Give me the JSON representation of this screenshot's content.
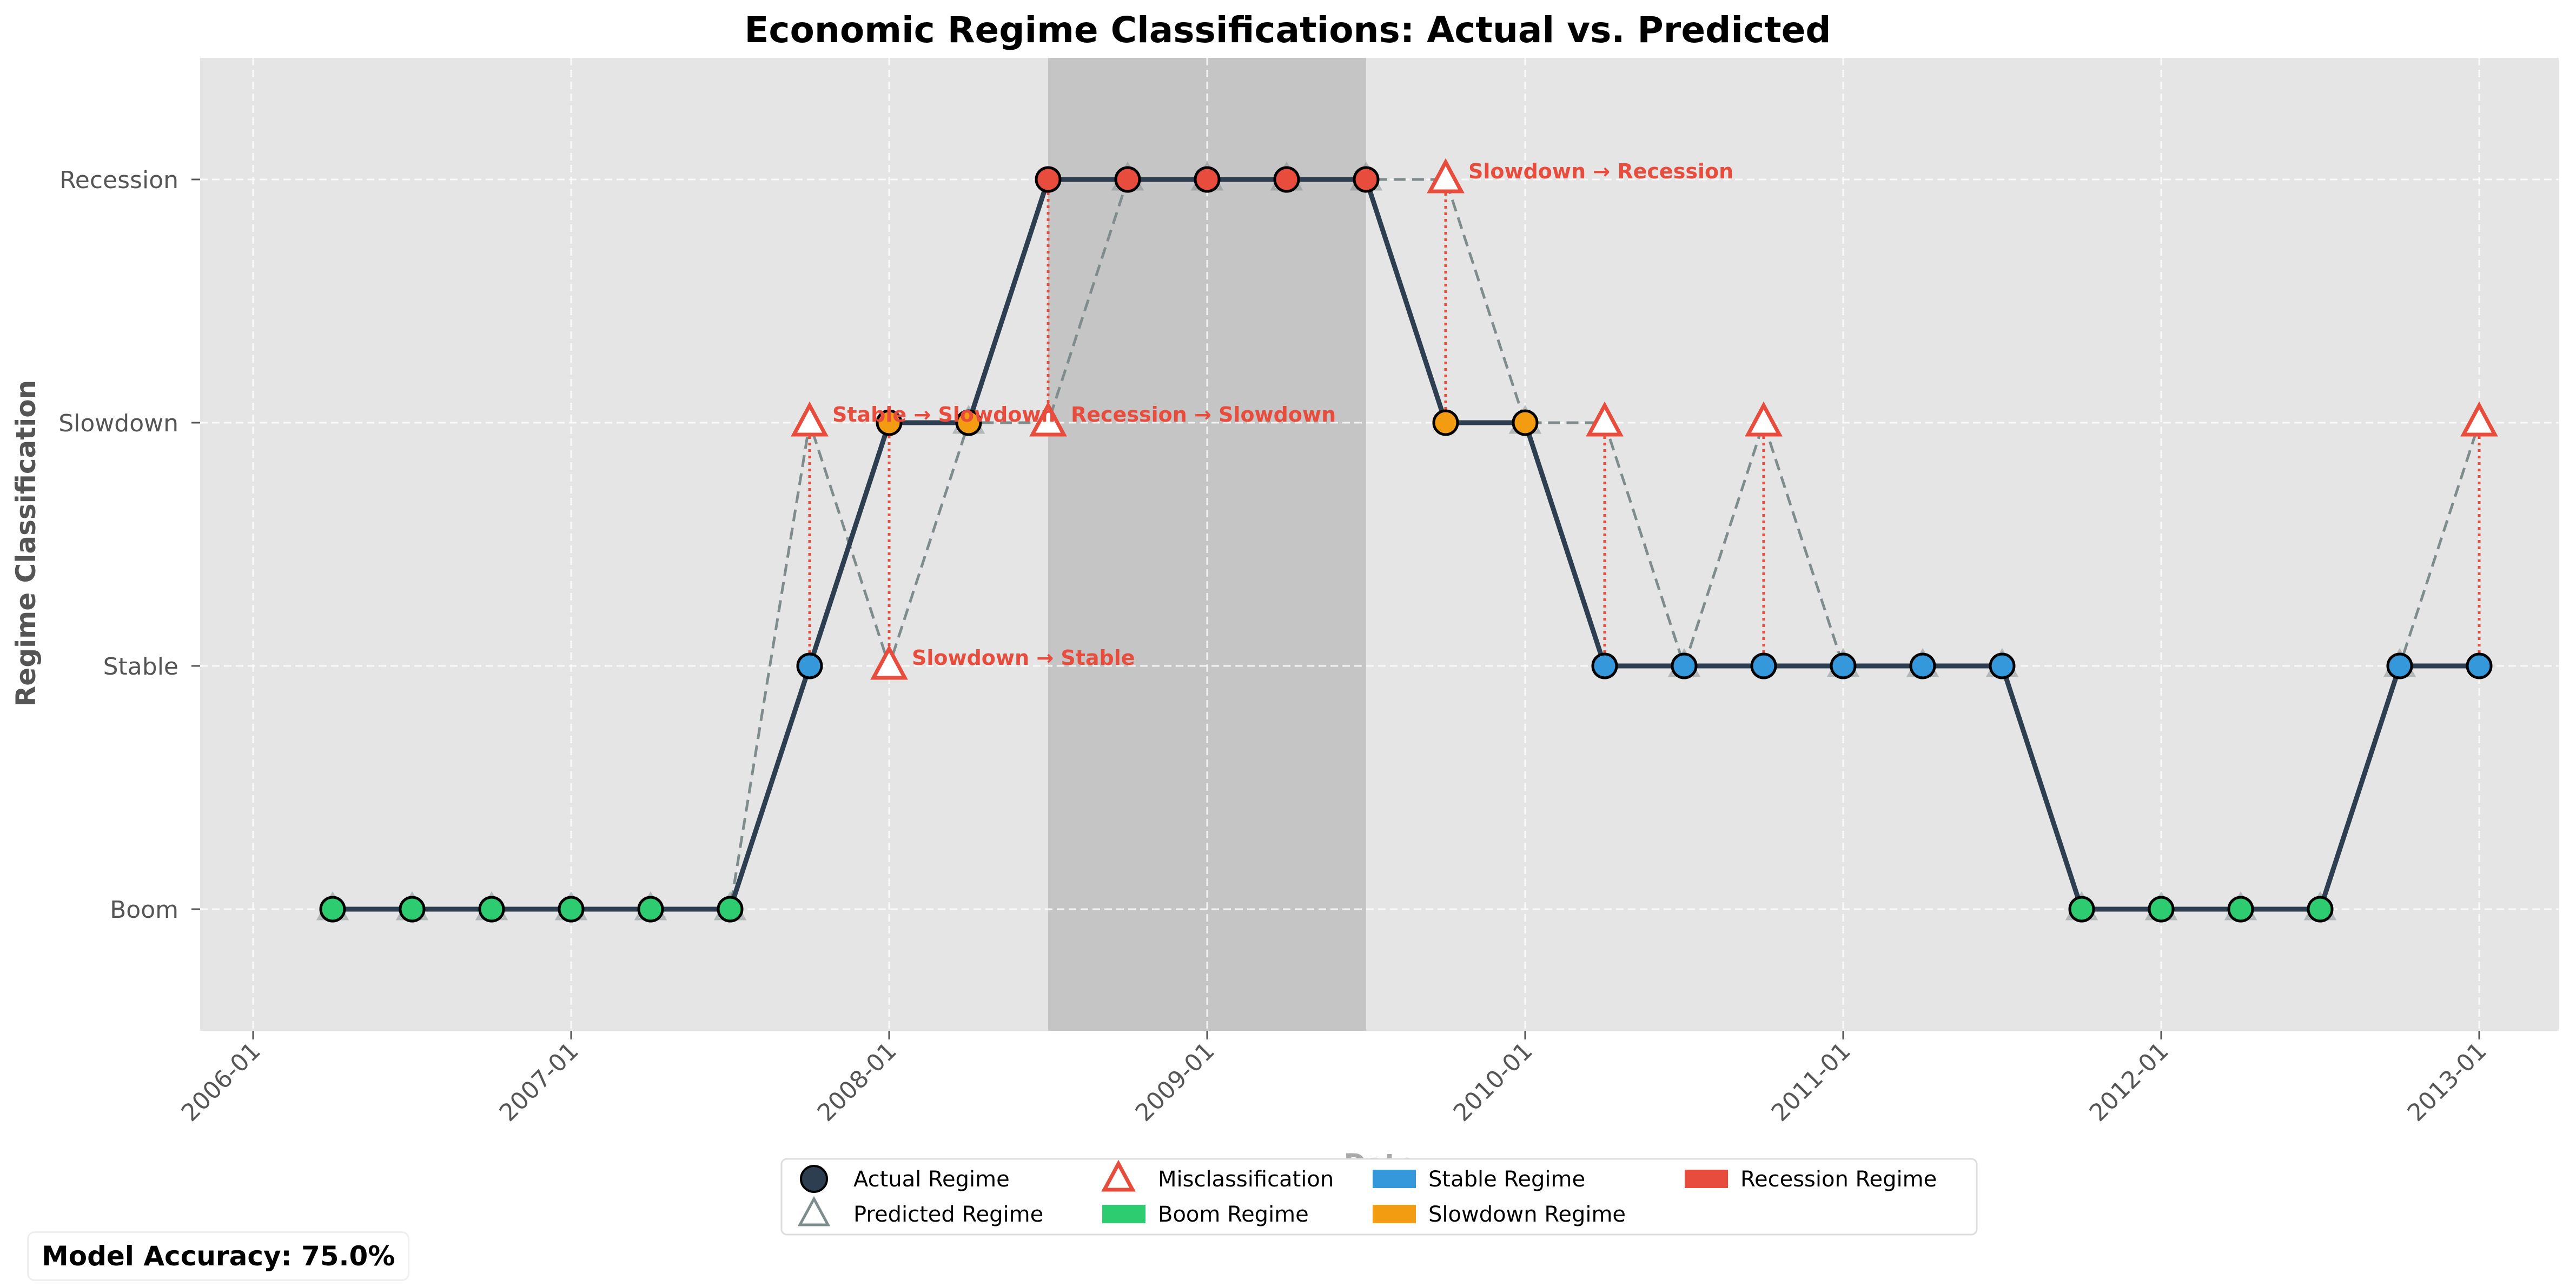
{
  "chart_data": {
    "type": "line",
    "title": "Economic Regime Classifications: Actual vs. Predicted",
    "xlabel": "Date",
    "ylabel": "Regime Classification",
    "y_categories": [
      "Boom",
      "Stable",
      "Slowdown",
      "Recession"
    ],
    "x_ticks": [
      "2006-01",
      "2007-01",
      "2008-01",
      "2009-01",
      "2010-01",
      "2011-01",
      "2012-01",
      "2013-01"
    ],
    "xlim": [
      "2005-11",
      "2013-04"
    ],
    "ylim": [
      -0.5,
      3.5
    ],
    "grid": true,
    "shaded_period": {
      "start": "2008-07",
      "end": "2009-07"
    },
    "dates": [
      "2006-04",
      "2006-07",
      "2006-10",
      "2007-01",
      "2007-04",
      "2007-07",
      "2007-10",
      "2008-01",
      "2008-04",
      "2008-07",
      "2008-10",
      "2009-01",
      "2009-04",
      "2009-07",
      "2009-10",
      "2010-01",
      "2010-04",
      "2010-07",
      "2010-10",
      "2011-01",
      "2011-04",
      "2011-07",
      "2011-10",
      "2012-01",
      "2012-04",
      "2012-07",
      "2012-10",
      "2013-01"
    ],
    "series": [
      {
        "name": "Actual Regime",
        "values": [
          "Boom",
          "Boom",
          "Boom",
          "Boom",
          "Boom",
          "Boom",
          "Stable",
          "Slowdown",
          "Slowdown",
          "Recession",
          "Recession",
          "Recession",
          "Recession",
          "Recession",
          "Slowdown",
          "Slowdown",
          "Stable",
          "Stable",
          "Stable",
          "Stable",
          "Stable",
          "Stable",
          "Boom",
          "Boom",
          "Boom",
          "Boom",
          "Stable",
          "Stable"
        ]
      },
      {
        "name": "Predicted Regime",
        "values": [
          "Boom",
          "Boom",
          "Boom",
          "Boom",
          "Boom",
          "Boom",
          "Slowdown",
          "Stable",
          "Slowdown",
          "Slowdown",
          "Recession",
          "Recession",
          "Recession",
          "Recession",
          "Recession",
          "Slowdown",
          "Slowdown",
          "Stable",
          "Slowdown",
          "Stable",
          "Stable",
          "Stable",
          "Boom",
          "Boom",
          "Boom",
          "Boom",
          "Stable",
          "Slowdown"
        ]
      }
    ],
    "annotations": [
      {
        "date": "2007-10",
        "text": "Stable → Slowdown"
      },
      {
        "date": "2008-01",
        "text": "Slowdown → Stable"
      },
      {
        "date": "2008-07",
        "text": "Recession → Slowdown"
      },
      {
        "date": "2009-10",
        "text": "Slowdown → Recession"
      }
    ],
    "legend": {
      "placement": "bottom-center",
      "entries": [
        "Actual Regime",
        "Predicted Regime",
        "Misclassification",
        "Boom Regime",
        "Stable Regime",
        "Slowdown Regime",
        "Recession Regime"
      ]
    },
    "colors": {
      "Boom": "#2ecc71",
      "Stable": "#3498db",
      "Slowdown": "#f39c12",
      "Recession": "#e74c3c",
      "actual_line": "#2c3e50",
      "predicted_line": "#7f8c8d",
      "misclassification": "#e74c3c",
      "plot_background": "#e5e5e5",
      "shaded_period": "#c5c5c5"
    }
  },
  "accuracy": {
    "text": "Model Accuracy: 75.0%"
  }
}
